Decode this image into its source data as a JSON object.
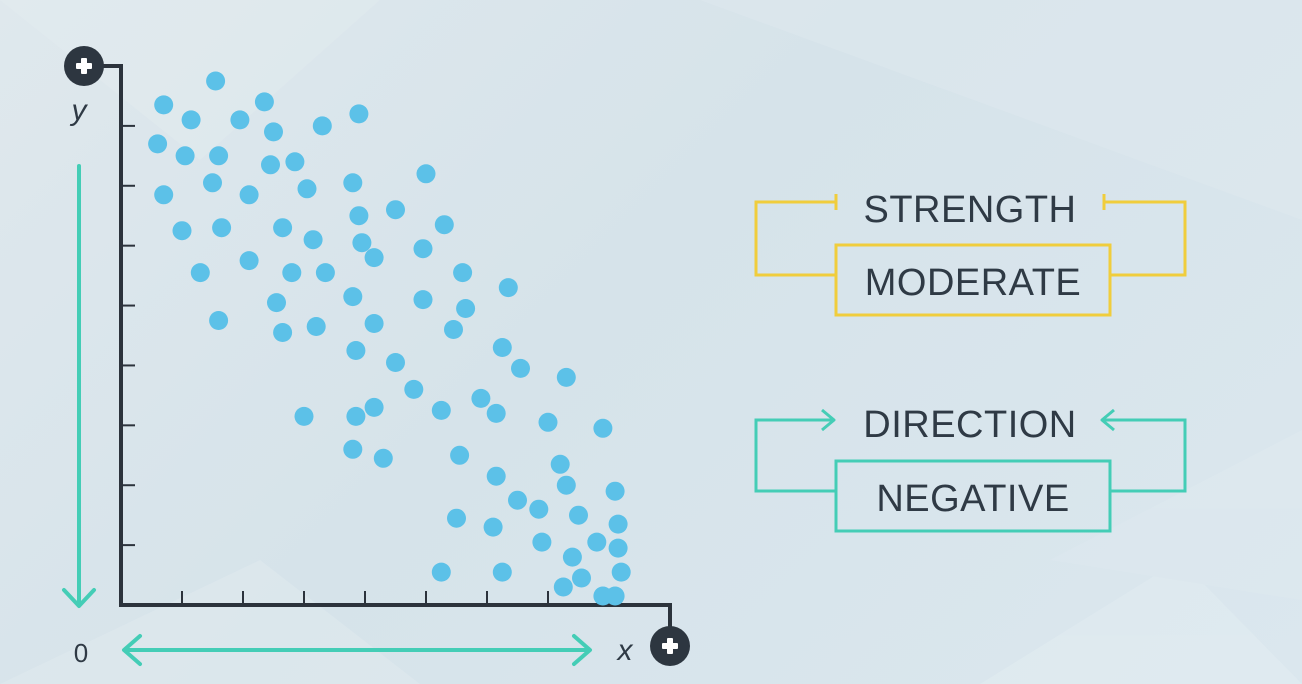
{
  "colors": {
    "axis": "#2c333c",
    "point": "#5cc1e8",
    "accent_teal": "#44cdb6",
    "accent_yellow": "#f0cd3c",
    "text": "#2f3a45",
    "plus_badge": "#2d3640"
  },
  "chart_data": {
    "type": "scatter",
    "xlabel": "x",
    "ylabel": "y",
    "origin_label": "0",
    "xlim": [
      0,
      9
    ],
    "ylim": [
      0,
      9
    ],
    "x_ticks": 8,
    "y_ticks": 8,
    "grid": false,
    "axis_end_icons": [
      "plus-icon",
      "plus-icon"
    ],
    "points": [
      [
        1.55,
        8.75
      ],
      [
        0.7,
        8.35
      ],
      [
        2.35,
        8.4
      ],
      [
        3.9,
        8.2
      ],
      [
        1.15,
        8.1
      ],
      [
        1.95,
        8.1
      ],
      [
        2.5,
        7.9
      ],
      [
        3.3,
        8.0
      ],
      [
        0.6,
        7.7
      ],
      [
        1.05,
        7.5
      ],
      [
        1.6,
        7.5
      ],
      [
        2.45,
        7.35
      ],
      [
        2.85,
        7.4
      ],
      [
        5.0,
        7.2
      ],
      [
        1.5,
        7.05
      ],
      [
        3.8,
        7.05
      ],
      [
        0.7,
        6.85
      ],
      [
        2.1,
        6.85
      ],
      [
        3.05,
        6.95
      ],
      [
        4.5,
        6.6
      ],
      [
        3.9,
        6.5
      ],
      [
        2.65,
        6.3
      ],
      [
        5.3,
        6.35
      ],
      [
        1.0,
        6.25
      ],
      [
        1.65,
        6.3
      ],
      [
        3.15,
        6.1
      ],
      [
        3.95,
        6.05
      ],
      [
        4.95,
        5.95
      ],
      [
        2.1,
        5.75
      ],
      [
        4.15,
        5.8
      ],
      [
        1.3,
        5.55
      ],
      [
        2.8,
        5.55
      ],
      [
        3.35,
        5.55
      ],
      [
        5.6,
        5.55
      ],
      [
        6.35,
        5.3
      ],
      [
        3.8,
        5.15
      ],
      [
        2.55,
        5.05
      ],
      [
        4.95,
        5.1
      ],
      [
        5.65,
        4.95
      ],
      [
        1.6,
        4.75
      ],
      [
        2.65,
        4.55
      ],
      [
        3.2,
        4.65
      ],
      [
        4.15,
        4.7
      ],
      [
        5.45,
        4.6
      ],
      [
        6.25,
        4.3
      ],
      [
        3.85,
        4.25
      ],
      [
        4.5,
        4.05
      ],
      [
        6.55,
        3.95
      ],
      [
        7.3,
        3.8
      ],
      [
        4.8,
        3.6
      ],
      [
        5.9,
        3.45
      ],
      [
        3.0,
        3.15
      ],
      [
        4.15,
        3.3
      ],
      [
        3.85,
        3.15
      ],
      [
        5.25,
        3.25
      ],
      [
        6.15,
        3.2
      ],
      [
        7.0,
        3.05
      ],
      [
        7.9,
        2.95
      ],
      [
        3.8,
        2.6
      ],
      [
        5.55,
        2.5
      ],
      [
        4.3,
        2.45
      ],
      [
        7.2,
        2.35
      ],
      [
        6.15,
        2.15
      ],
      [
        7.3,
        2.0
      ],
      [
        6.5,
        1.75
      ],
      [
        8.1,
        1.9
      ],
      [
        5.5,
        1.45
      ],
      [
        6.85,
        1.6
      ],
      [
        7.5,
        1.5
      ],
      [
        6.1,
        1.3
      ],
      [
        8.15,
        1.35
      ],
      [
        6.9,
        1.05
      ],
      [
        7.8,
        1.05
      ],
      [
        7.4,
        0.8
      ],
      [
        8.15,
        0.95
      ],
      [
        6.25,
        0.55
      ],
      [
        5.25,
        0.55
      ],
      [
        8.2,
        0.55
      ],
      [
        7.55,
        0.45
      ],
      [
        7.25,
        0.3
      ],
      [
        7.9,
        0.15
      ],
      [
        8.1,
        0.15
      ]
    ]
  },
  "legend": {
    "strength_label": "STRENGTH",
    "strength_value": "MODERATE",
    "direction_label": "DIRECTION",
    "direction_value": "NEGATIVE"
  }
}
